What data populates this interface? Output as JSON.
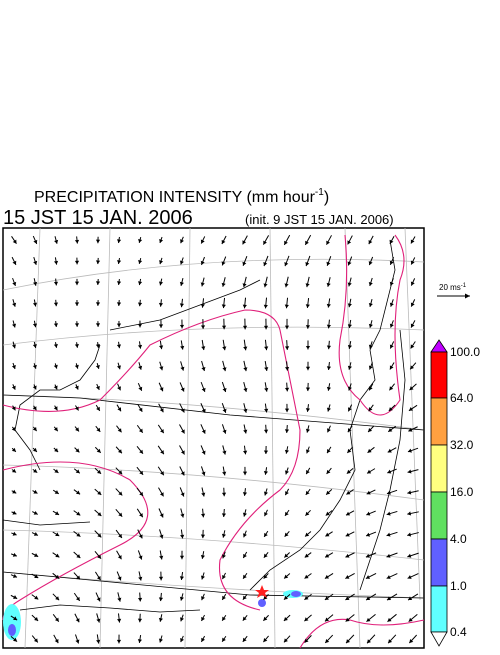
{
  "header": {
    "title": "PRECIPITATION INTENSITY (mm hour",
    "title_sup": "-1",
    "title_end": ")",
    "valid_time": "15 JST 15 JAN. 2006",
    "init_time": "(init. 9 JST 15 JAN. 2006)"
  },
  "vector_key": {
    "label": "20 ms",
    "label_sup": "-1"
  },
  "colorbar": {
    "labels": [
      "100.0",
      "64.0",
      "32.0",
      "16.0",
      "4.0",
      "1.0",
      "0.4"
    ]
  }
}
